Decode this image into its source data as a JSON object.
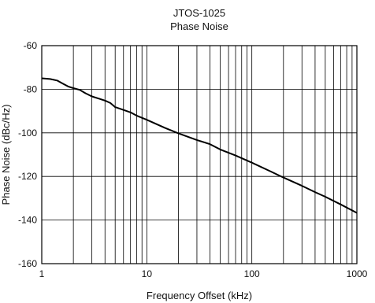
{
  "chart_data": {
    "type": "line",
    "title": "JTOS-1025",
    "subtitle": "Phase Noise",
    "xlabel": "Frequency Offset (kHz)",
    "ylabel": "Phase Noise (dBc/Hz)",
    "xscale": "log",
    "xlim": [
      1,
      1000
    ],
    "ylim": [
      -160,
      -60
    ],
    "grid": true,
    "xticks": [
      1,
      10,
      100,
      1000
    ],
    "xtick_labels": [
      "1",
      "10",
      "100",
      "1000"
    ],
    "yticks": [
      -60,
      -80,
      -100,
      -120,
      -140,
      -160
    ],
    "ytick_labels": [
      "-60",
      "-80",
      "-100",
      "-120",
      "-140",
      "-160"
    ],
    "series": [
      {
        "color": "#000000",
        "x": [
          1,
          1.2,
          1.4,
          1.6,
          1.8,
          2,
          2.3,
          2.6,
          3,
          3.5,
          4,
          4.5,
          5,
          6,
          7,
          8,
          9,
          10,
          15,
          20,
          30,
          40,
          50,
          70,
          100,
          150,
          200,
          300,
          400,
          500,
          700,
          1000
        ],
        "y": [
          -75,
          -75.3,
          -76,
          -77.5,
          -78.8,
          -79.5,
          -80.3,
          -81.8,
          -83.3,
          -84.3,
          -85.2,
          -86.3,
          -88.2,
          -89.5,
          -90.6,
          -92.1,
          -93.1,
          -94,
          -97.8,
          -100.2,
          -103.3,
          -105.2,
          -107.6,
          -110.4,
          -113.7,
          -117.6,
          -120.5,
          -124.3,
          -127.2,
          -129.3,
          -132.8,
          -136.7
        ]
      }
    ]
  }
}
